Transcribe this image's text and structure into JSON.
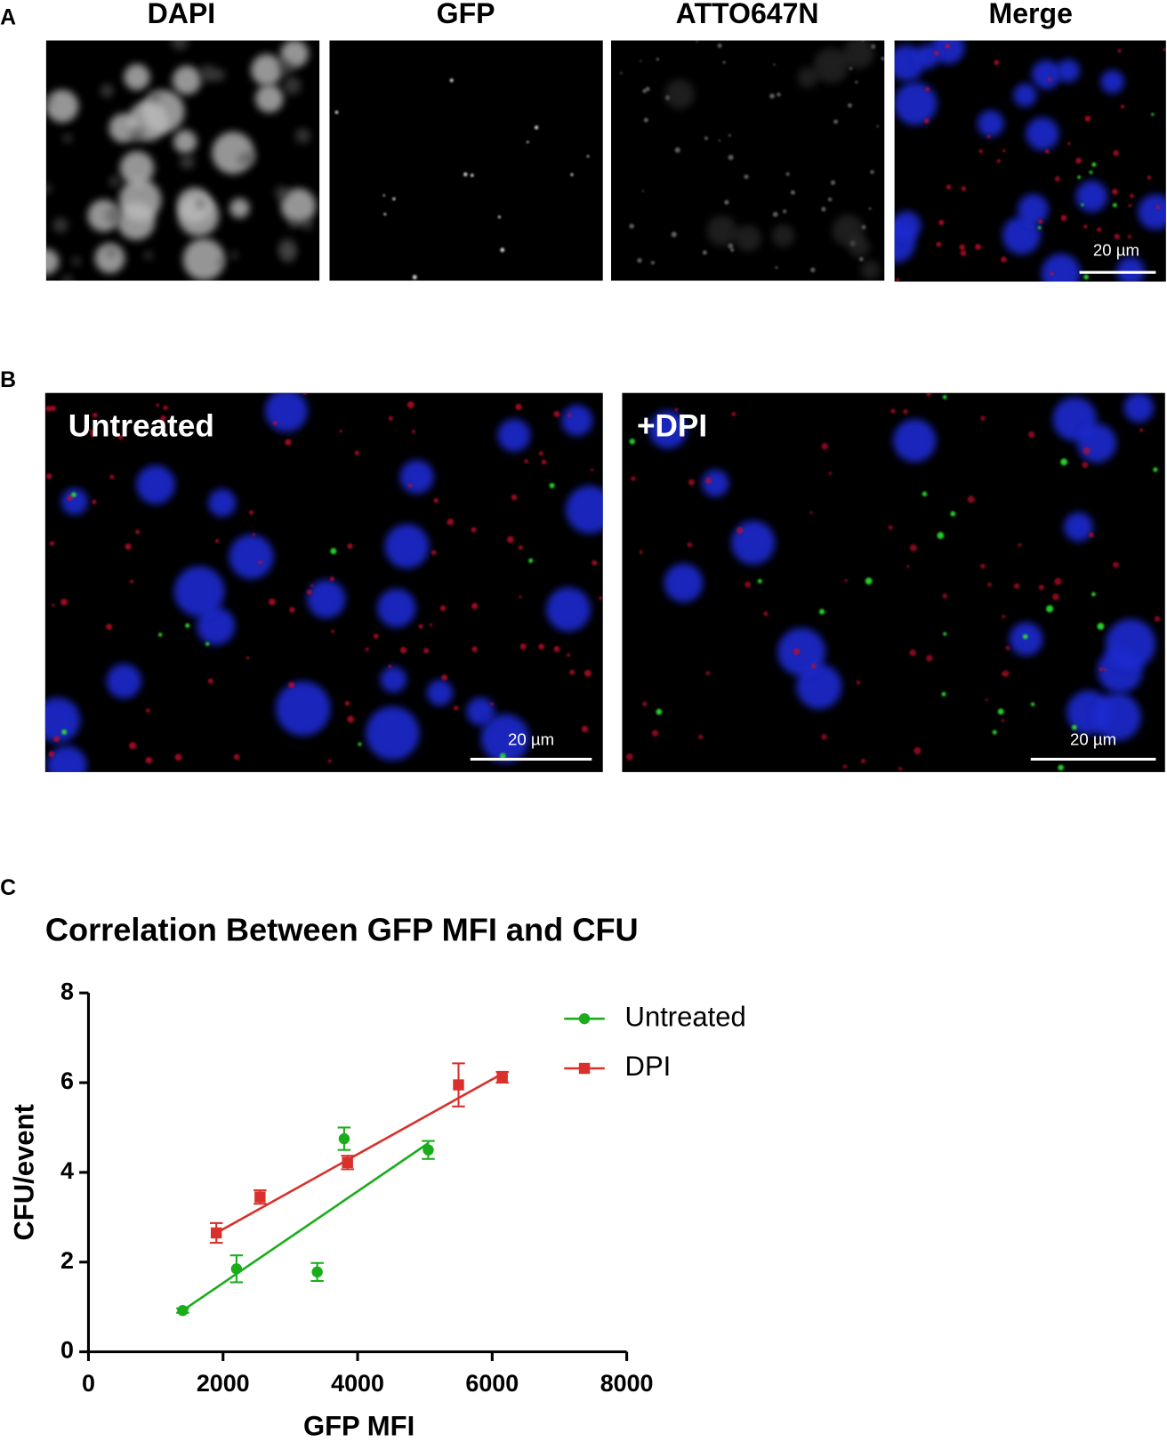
{
  "panel_a": {
    "label": "A",
    "channels": [
      "DAPI",
      "GFP",
      "ATTO647N",
      "Merge"
    ],
    "scale_bar": "20 µm"
  },
  "panel_b": {
    "label": "B",
    "conditions": [
      "Untreated",
      "+DPI"
    ],
    "scale_bars": [
      "20 µm",
      "20 µm"
    ]
  },
  "panel_c": {
    "label": "C"
  },
  "chart_data": {
    "type": "scatter",
    "title": "Correlation Between GFP MFI and CFU",
    "x_label": "GFP MFI",
    "y_label": "CFU/event",
    "xlim": [
      0,
      8000
    ],
    "xticks": [
      0,
      2000,
      4000,
      6000,
      8000
    ],
    "ylim": [
      0,
      8
    ],
    "yticks": [
      0,
      2,
      4,
      6,
      8
    ],
    "legend": "right",
    "series": [
      {
        "name": "Untreated",
        "color": "#1aad1a",
        "marker": "circle",
        "x": [
          1400,
          2200,
          3400,
          3800,
          5050
        ],
        "values": [
          0.92,
          1.85,
          1.78,
          4.75,
          4.5
        ],
        "errors": [
          0.05,
          0.3,
          0.2,
          0.25,
          0.2
        ],
        "fit": {
          "x": [
            1400,
            5050
          ],
          "y": [
            0.92,
            4.65
          ]
        }
      },
      {
        "name": "DPI",
        "color": "#d9302b",
        "marker": "square",
        "x": [
          1900,
          2550,
          3850,
          5500,
          6150
        ],
        "values": [
          2.65,
          3.45,
          4.22,
          5.95,
          6.12
        ],
        "errors": [
          0.22,
          0.15,
          0.15,
          0.48,
          0.12
        ],
        "fit": {
          "x": [
            1900,
            6150
          ],
          "y": [
            2.65,
            6.2
          ]
        }
      }
    ]
  }
}
